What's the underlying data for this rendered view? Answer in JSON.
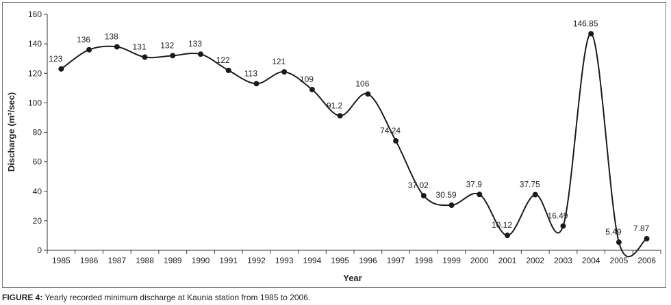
{
  "chart_data": {
    "type": "line",
    "title": "",
    "xlabel": "Year",
    "ylabel": "Discharge (m³/sec)",
    "ylim": [
      0,
      160
    ],
    "yticks": [
      0,
      20,
      40,
      60,
      80,
      100,
      120,
      140,
      160
    ],
    "grid": false,
    "smooth": true,
    "marker": "circle",
    "color": "#1a1a1a",
    "categories": [
      "1985",
      "1986",
      "1987",
      "1988",
      "1989",
      "1990",
      "1991",
      "1992",
      "1993",
      "1994",
      "1995",
      "1996",
      "1997",
      "1998",
      "1999",
      "2000",
      "2001",
      "2002",
      "2003",
      "2004",
      "2005",
      "2006"
    ],
    "values": [
      123,
      136,
      138,
      131,
      132,
      133,
      122,
      113,
      121,
      109,
      91.2,
      106,
      74.24,
      37.02,
      30.59,
      37.9,
      10.12,
      37.75,
      16.49,
      146.85,
      5.49,
      7.87
    ],
    "data_labels": [
      "123",
      "136",
      "138",
      "131",
      "132",
      "133",
      "122",
      "113",
      "121",
      "109",
      "91.2",
      "106",
      "74.24",
      "37.02",
      "30.59",
      "37.9",
      "10.12",
      "37.75",
      "16.49",
      "146.85",
      "5.49",
      "7.87"
    ]
  },
  "caption": {
    "prefix": "FIGURE 4:",
    "text": " Yearly recorded minimum discharge at Kaunia station from 1985 to 2006."
  }
}
